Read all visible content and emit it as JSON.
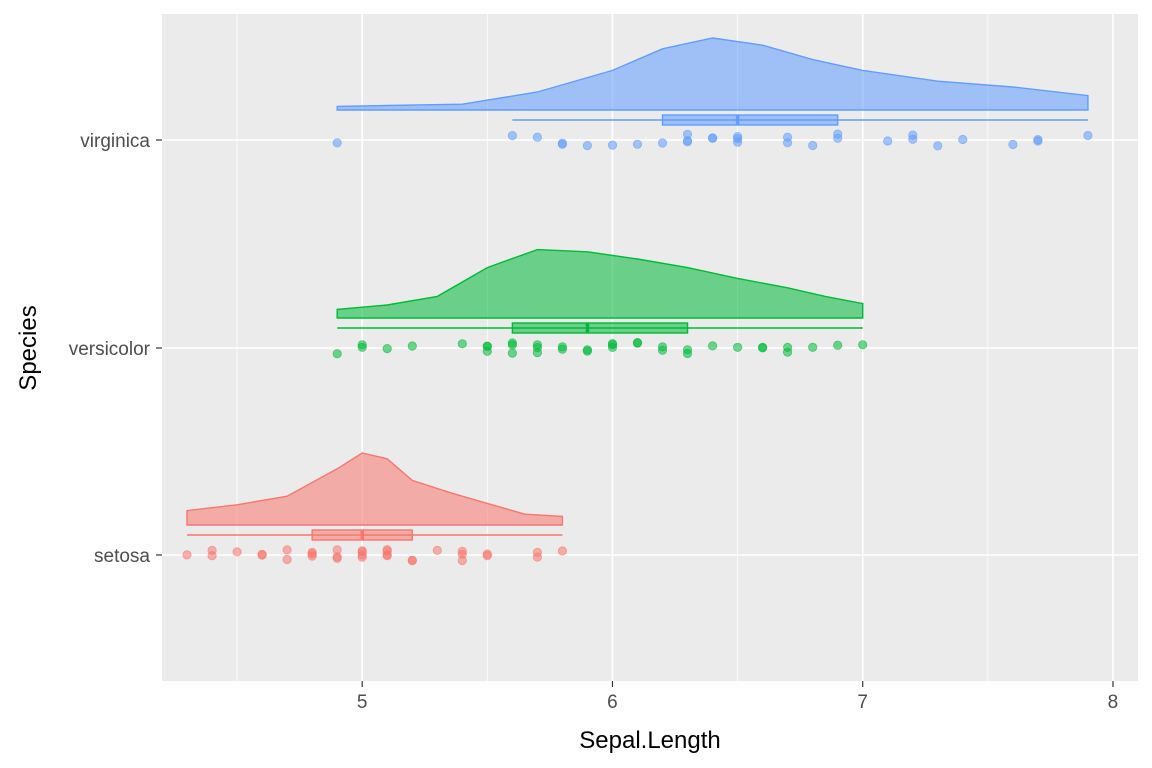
{
  "chart_data": {
    "type": "raincloud",
    "xlabel": "Sepal.Length",
    "ylabel": "Species",
    "xlim": [
      4.2,
      8.1
    ],
    "x_ticks": [
      5,
      6,
      7,
      8
    ],
    "x_tick_labels": [
      "5",
      "6",
      "7",
      "8"
    ],
    "grid": true,
    "legend": "none",
    "categories": [
      "setosa",
      "versicolor",
      "virginica"
    ],
    "series": [
      {
        "name": "setosa",
        "color": "#F8766D",
        "box": {
          "min": 4.3,
          "q1": 4.8,
          "median": 5.0,
          "q3": 5.2,
          "max": 5.8
        },
        "density": [
          [
            4.3,
            0.2
          ],
          [
            4.5,
            0.28
          ],
          [
            4.7,
            0.4
          ],
          [
            4.9,
            0.78
          ],
          [
            5.0,
            1.0
          ],
          [
            5.1,
            0.92
          ],
          [
            5.2,
            0.62
          ],
          [
            5.35,
            0.45
          ],
          [
            5.5,
            0.3
          ],
          [
            5.65,
            0.15
          ],
          [
            5.8,
            0.12
          ]
        ],
        "points": [
          4.3,
          4.4,
          4.4,
          4.5,
          4.6,
          4.6,
          4.7,
          4.7,
          4.8,
          4.8,
          4.8,
          4.9,
          4.9,
          4.9,
          5.0,
          5.0,
          5.0,
          5.0,
          5.1,
          5.1,
          5.1,
          5.1,
          5.2,
          5.2,
          5.3,
          5.4,
          5.4,
          5.4,
          5.5,
          5.5,
          5.7,
          5.7,
          5.8
        ]
      },
      {
        "name": "versicolor",
        "color": "#00BA38",
        "box": {
          "min": 4.9,
          "q1": 5.6,
          "median": 5.9,
          "q3": 6.3,
          "max": 7.0
        },
        "density": [
          [
            4.9,
            0.12
          ],
          [
            5.1,
            0.18
          ],
          [
            5.3,
            0.3
          ],
          [
            5.5,
            0.7
          ],
          [
            5.7,
            0.95
          ],
          [
            5.9,
            0.92
          ],
          [
            6.1,
            0.82
          ],
          [
            6.3,
            0.7
          ],
          [
            6.5,
            0.55
          ],
          [
            6.7,
            0.42
          ],
          [
            6.85,
            0.3
          ],
          [
            7.0,
            0.2
          ]
        ],
        "points": [
          4.9,
          5.0,
          5.0,
          5.1,
          5.2,
          5.4,
          5.5,
          5.5,
          5.5,
          5.6,
          5.6,
          5.6,
          5.7,
          5.7,
          5.7,
          5.8,
          5.8,
          5.9,
          5.9,
          6.0,
          6.0,
          6.0,
          6.1,
          6.1,
          6.2,
          6.2,
          6.3,
          6.3,
          6.4,
          6.5,
          6.6,
          6.6,
          6.7,
          6.7,
          6.8,
          6.9,
          7.0
        ]
      },
      {
        "name": "virginica",
        "color": "#619CFF",
        "box": {
          "min": 5.6,
          "q1": 6.2,
          "median": 6.5,
          "q3": 6.9,
          "max": 7.9
        },
        "density": [
          [
            4.9,
            0.05
          ],
          [
            5.4,
            0.08
          ],
          [
            5.7,
            0.25
          ],
          [
            6.0,
            0.55
          ],
          [
            6.2,
            0.85
          ],
          [
            6.4,
            1.0
          ],
          [
            6.6,
            0.9
          ],
          [
            6.8,
            0.7
          ],
          [
            7.0,
            0.55
          ],
          [
            7.3,
            0.4
          ],
          [
            7.6,
            0.32
          ],
          [
            7.9,
            0.2
          ]
        ],
        "points": [
          4.9,
          5.6,
          5.7,
          5.8,
          5.8,
          5.9,
          6.0,
          6.1,
          6.2,
          6.3,
          6.3,
          6.3,
          6.4,
          6.4,
          6.5,
          6.5,
          6.5,
          6.7,
          6.7,
          6.8,
          6.9,
          6.9,
          7.1,
          7.2,
          7.2,
          7.3,
          7.4,
          7.6,
          7.7,
          7.7,
          7.9
        ]
      }
    ]
  }
}
